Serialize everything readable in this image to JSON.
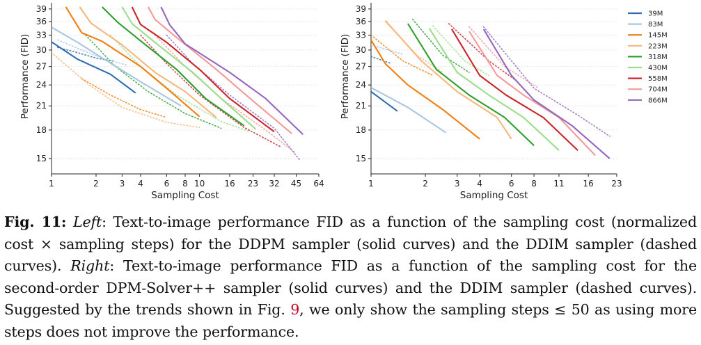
{
  "chart_data": [
    {
      "type": "line",
      "title": "",
      "xlabel": "Sampling Cost",
      "ylabel": "Performance (FID)",
      "x_scale": "log2",
      "y_scale": "log",
      "xlim": [
        1,
        64
      ],
      "ylim": [
        13.6,
        39.5
      ],
      "x_ticks": [
        "1",
        "2",
        "3",
        "4",
        "6",
        "8",
        "10",
        "16",
        "23",
        "32",
        "45",
        "64"
      ],
      "x_tick_values": [
        1,
        2,
        3,
        4,
        6,
        8,
        10,
        16,
        23,
        32,
        45,
        64
      ],
      "y_ticks": [
        "15",
        "18",
        "21",
        "24",
        "27",
        "30",
        "33",
        "36",
        "39"
      ],
      "y_tick_values": [
        15,
        18,
        21,
        24,
        27,
        30,
        33,
        36,
        39
      ],
      "grid": "horizontal dotted",
      "series": [
        {
          "model": "39M",
          "color": "#2f6db0",
          "style": "solid",
          "points": [
            [
              1,
              31.6
            ],
            [
              1.5,
              28.3
            ],
            [
              2.5,
              25.7
            ],
            [
              3.7,
              22.8
            ]
          ]
        },
        {
          "model": "83M",
          "color": "#a9c7e3",
          "style": "solid",
          "points": [
            [
              1,
              34.7
            ],
            [
              1.5,
              31.5
            ],
            [
              2.5,
              27.6
            ],
            [
              4,
              24.5
            ],
            [
              7.5,
              21.0
            ]
          ]
        },
        {
          "model": "145M",
          "color": "#ef7f11",
          "style": "solid",
          "points": [
            [
              1.25,
              39.5
            ],
            [
              1.6,
              33.5
            ],
            [
              2.2,
              31.7
            ],
            [
              4,
              27
            ],
            [
              6,
              23.5
            ],
            [
              10,
              19.6
            ]
          ]
        },
        {
          "model": "223M",
          "color": "#f6b77e",
          "style": "solid",
          "points": [
            [
              1.55,
              39.5
            ],
            [
              1.85,
              35.6
            ],
            [
              3,
              31
            ],
            [
              5,
              26
            ],
            [
              8,
              23
            ],
            [
              13,
              19.5
            ]
          ]
        },
        {
          "model": "318M",
          "color": "#2c9f2c",
          "style": "solid",
          "points": [
            [
              2.2,
              39.5
            ],
            [
              2.8,
              35.8
            ],
            [
              4,
              31.8
            ],
            [
              7,
              26.5
            ],
            [
              11,
              22
            ],
            [
              20,
              18.5
            ]
          ]
        },
        {
          "model": "430M",
          "color": "#99df8b",
          "style": "solid",
          "points": [
            [
              3,
              39.5
            ],
            [
              3.5,
              35.5
            ],
            [
              5,
              31.5
            ],
            [
              9,
              26
            ],
            [
              14,
              22
            ],
            [
              24,
              18.1
            ]
          ]
        },
        {
          "model": "558M",
          "color": "#c92528",
          "style": "solid",
          "points": [
            [
              3.5,
              39.5
            ],
            [
              4,
              35.3
            ],
            [
              6,
              31.5
            ],
            [
              10,
              26.5
            ],
            [
              16,
              22
            ],
            [
              32,
              17.8
            ]
          ]
        },
        {
          "model": "704M",
          "color": "#f4999a",
          "style": "solid",
          "points": [
            [
              4.5,
              39.5
            ],
            [
              5,
              36.5
            ],
            [
              7,
              32.5
            ],
            [
              13,
              26.5
            ],
            [
              22,
              22
            ],
            [
              42,
              17.6
            ]
          ]
        },
        {
          "model": "866M",
          "color": "#9467bd",
          "style": "solid",
          "points": [
            [
              5.5,
              39.5
            ],
            [
              6.3,
              35.2
            ],
            [
              8,
              31.2
            ],
            [
              16,
              26
            ],
            [
              28,
              22
            ],
            [
              50,
              17.5
            ]
          ]
        },
        {
          "model": "39M",
          "color": "#2f6db0",
          "style": "dotted",
          "points": [
            [
              1.1,
              30.5
            ],
            [
              1.5,
              29.5
            ],
            [
              2.0,
              28.5
            ],
            [
              2.6,
              28.0
            ]
          ]
        },
        {
          "model": "83M",
          "color": "#a9c7e3",
          "style": "dotted",
          "points": [
            [
              1.1,
              32
            ],
            [
              1.6,
              30
            ],
            [
              2.3,
              28.3
            ],
            [
              3.3,
              27.2
            ]
          ]
        },
        {
          "model": "145M",
          "color": "#ef7f11",
          "style": "dotted",
          "points": [
            [
              1.6,
              25
            ],
            [
              2.5,
              22.5
            ],
            [
              4,
              20.5
            ],
            [
              6,
              19.5
            ]
          ]
        },
        {
          "model": "223M",
          "color": "#f6b77e",
          "style": "dotted",
          "points": [
            [
              1,
              29.5
            ],
            [
              1.8,
              24
            ],
            [
              3,
              20.8
            ],
            [
              6,
              18.9
            ],
            [
              10,
              18.3
            ]
          ]
        },
        {
          "model": "318M",
          "color": "#2c9f2c",
          "style": "dotted",
          "points": [
            [
              1.7,
              33
            ],
            [
              2.7,
              27
            ],
            [
              4.5,
              23
            ],
            [
              8,
              20
            ],
            [
              14,
              18.2
            ]
          ]
        },
        {
          "model": "430M",
          "color": "#99df8b",
          "style": "dotted",
          "points": [
            [
              2.5,
              33
            ],
            [
              4,
              27
            ],
            [
              7,
              22.5
            ],
            [
              14,
              19
            ],
            [
              22,
              17.8
            ]
          ]
        },
        {
          "model": "558M",
          "color": "#c92528",
          "style": "dotted",
          "points": [
            [
              4,
              33
            ],
            [
              6,
              27.5
            ],
            [
              10,
              22.5
            ],
            [
              20,
              18.3
            ],
            [
              35,
              16.2
            ]
          ]
        },
        {
          "model": "704M",
          "color": "#f4999a",
          "style": "dotted",
          "points": [
            [
              5,
              33
            ],
            [
              8,
              27
            ],
            [
              14,
              22
            ],
            [
              28,
              18
            ],
            [
              45,
              15.5
            ]
          ]
        },
        {
          "model": "866M",
          "color": "#9467bd",
          "style": "dotted",
          "points": [
            [
              6,
              33
            ],
            [
              9,
              27.5
            ],
            [
              16,
              22.5
            ],
            [
              32,
              18.2
            ],
            [
              48,
              14.8
            ]
          ]
        }
      ]
    },
    {
      "type": "line",
      "title": "",
      "xlabel": "Sampling Cost",
      "ylabel": "Performance (FID)",
      "x_scale": "log2",
      "y_scale": "log",
      "xlim": [
        1,
        23
      ],
      "ylim": [
        13.6,
        39.5
      ],
      "x_ticks": [
        "1",
        "2",
        "3",
        "4",
        "6",
        "8",
        "11",
        "16",
        "23"
      ],
      "x_tick_values": [
        1,
        2,
        3,
        4,
        6,
        8,
        11,
        16,
        23
      ],
      "y_ticks": [
        "15",
        "18",
        "21",
        "24",
        "27",
        "30",
        "33",
        "36",
        "39"
      ],
      "y_tick_values": [
        15,
        18,
        21,
        24,
        27,
        30,
        33,
        36,
        39
      ],
      "grid": "horizontal dotted",
      "legend_placement": "right",
      "legend": [
        "39M",
        "83M",
        "145M",
        "223M",
        "318M",
        "430M",
        "558M",
        "704M",
        "866M"
      ],
      "series": [
        {
          "model": "39M",
          "color": "#2f6db0",
          "style": "solid",
          "points": [
            [
              1,
              23
            ],
            [
              1.4,
              20.3
            ]
          ]
        },
        {
          "model": "83M",
          "color": "#a9c7e3",
          "style": "solid",
          "points": [
            [
              1,
              23.6
            ],
            [
              1.6,
              20.8
            ],
            [
              2.6,
              17.7
            ]
          ]
        },
        {
          "model": "145M",
          "color": "#ef7f11",
          "style": "solid",
          "points": [
            [
              1,
              32
            ],
            [
              1.2,
              27.5
            ],
            [
              1.6,
              24
            ],
            [
              2.5,
              20.5
            ],
            [
              4,
              17
            ]
          ]
        },
        {
          "model": "223M",
          "color": "#f6b77e",
          "style": "solid",
          "points": [
            [
              1.2,
              36.2
            ],
            [
              1.9,
              28
            ],
            [
              3,
              23
            ],
            [
              5,
              19.5
            ],
            [
              6,
              17
            ]
          ]
        },
        {
          "model": "318M",
          "color": "#2c9f2c",
          "style": "solid",
          "points": [
            [
              1.6,
              35.5
            ],
            [
              2.3,
              26.5
            ],
            [
              3.5,
              22.5
            ],
            [
              5.5,
              19.5
            ],
            [
              8,
              16.3
            ]
          ]
        },
        {
          "model": "430M",
          "color": "#99df8b",
          "style": "solid",
          "points": [
            [
              2.1,
              34.5
            ],
            [
              3,
              26
            ],
            [
              4.5,
              22.5
            ],
            [
              7,
              19.5
            ],
            [
              11,
              15.8
            ]
          ]
        },
        {
          "model": "558M",
          "color": "#c92528",
          "style": "solid",
          "points": [
            [
              2.8,
              34.3
            ],
            [
              4,
              25.5
            ],
            [
              5.6,
              22.5
            ],
            [
              9,
              19.5
            ],
            [
              14,
              15.8
            ]
          ]
        },
        {
          "model": "704M",
          "color": "#f4999a",
          "style": "solid",
          "points": [
            [
              3.5,
              33.8
            ],
            [
              5,
              25.5
            ],
            [
              7,
              22.5
            ],
            [
              11,
              19.5
            ],
            [
              17.5,
              15.3
            ]
          ]
        },
        {
          "model": "866M",
          "color": "#9467bd",
          "style": "solid",
          "points": [
            [
              4.2,
              34.3
            ],
            [
              6,
              25.5
            ],
            [
              8,
              21.8
            ],
            [
              13,
              18.5
            ],
            [
              21,
              15
            ]
          ]
        },
        {
          "model": "39M",
          "color": "#2f6db0",
          "style": "dotted",
          "points": [
            [
              1,
              28.8
            ],
            [
              1.3,
              27.5
            ]
          ]
        },
        {
          "model": "83M",
          "color": "#a9c7e3",
          "style": "dotted",
          "points": [
            [
              1,
              31
            ],
            [
              1.5,
              29.2
            ]
          ]
        },
        {
          "model": "145M",
          "color": "#ef7f11",
          "style": "dotted",
          "points": [
            [
              1,
              33
            ],
            [
              1.5,
              28
            ],
            [
              2.2,
              25.5
            ]
          ]
        },
        {
          "model": "223M",
          "color": "#f6b77e",
          "style": "dotted",
          "points": [
            [
              1.2,
              36
            ],
            [
              1.8,
              29
            ],
            [
              2.5,
              26
            ]
          ]
        },
        {
          "model": "318M",
          "color": "#2c9f2c",
          "style": "dotted",
          "points": [
            [
              1.7,
              36.5
            ],
            [
              2.5,
              29
            ],
            [
              3.5,
              26
            ]
          ]
        },
        {
          "model": "430M",
          "color": "#99df8b",
          "style": "dotted",
          "points": [
            [
              2.2,
              35
            ],
            [
              3.3,
              28
            ],
            [
              4.5,
              25.5
            ]
          ]
        },
        {
          "model": "558M",
          "color": "#c92528",
          "style": "dotted",
          "points": [
            [
              2.7,
              35.5
            ],
            [
              4.5,
              28
            ],
            [
              6.5,
              24.5
            ]
          ]
        },
        {
          "model": "704M",
          "color": "#f4999a",
          "style": "dotted",
          "points": [
            [
              3.5,
              34.8
            ],
            [
              5.5,
              27
            ],
            [
              8.5,
              23.5
            ]
          ]
        },
        {
          "model": "866M",
          "color": "#9467bd",
          "style": "dotted",
          "points": [
            [
              4.2,
              34.8
            ],
            [
              8,
              23.5
            ],
            [
              14,
              19.8
            ],
            [
              21,
              17.3
            ]
          ]
        }
      ]
    }
  ],
  "caption": {
    "lead": "Fig. 11:",
    "parts": [
      {
        "text": " ",
        "style": "plain"
      },
      {
        "text": "Left",
        "style": "italic"
      },
      {
        "text": ": Text-to-image performance FID as a function of the sampling cost (normalized cost × sampling steps) for the DDPM sampler (solid curves) and the DDIM sampler (dashed curves). ",
        "style": "plain"
      },
      {
        "text": "Right",
        "style": "italic"
      },
      {
        "text": ": Text-to-image performance FID as a function of the sampling cost for the second-order DPM-Solver++ sampler (solid curves) and the DDIM sampler (dashed curves). Suggested by the trends shown in Fig. ",
        "style": "plain"
      },
      {
        "text": "9",
        "style": "ref"
      },
      {
        "text": ", we only show the sampling steps ≤ 50 as using more steps does not improve the performance.",
        "style": "plain"
      }
    ]
  }
}
